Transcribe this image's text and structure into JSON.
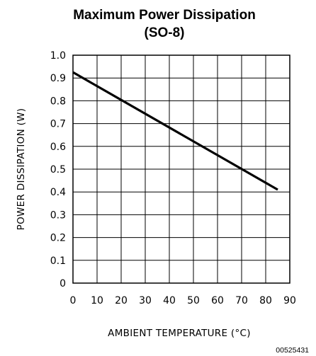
{
  "chart_data": {
    "type": "line",
    "title": "Maximum Power Dissipation",
    "subtitle": "(SO-8)",
    "xlabel": "AMBIENT TEMPERATURE (°C)",
    "ylabel": "POWER DISSIPATION (W)",
    "xlim": [
      0,
      90
    ],
    "ylim": [
      0,
      1.0
    ],
    "x_ticks": [
      0,
      10,
      20,
      30,
      40,
      50,
      60,
      70,
      80,
      90
    ],
    "y_ticks": [
      0,
      0.1,
      0.2,
      0.3,
      0.4,
      0.5,
      0.6,
      0.7,
      0.8,
      0.9,
      1.0
    ],
    "x_tick_labels": [
      "0",
      "10",
      "20",
      "30",
      "40",
      "50",
      "60",
      "70",
      "80",
      "90"
    ],
    "y_tick_labels": [
      "0",
      "0.1",
      "0.2",
      "0.3",
      "0.4",
      "0.5",
      "0.6",
      "0.7",
      "0.8",
      "0.9",
      "1.0"
    ],
    "grid": true,
    "series": [
      {
        "x": [
          0,
          85
        ],
        "y": [
          0.925,
          0.41
        ]
      }
    ]
  },
  "figure_id": "00525431"
}
